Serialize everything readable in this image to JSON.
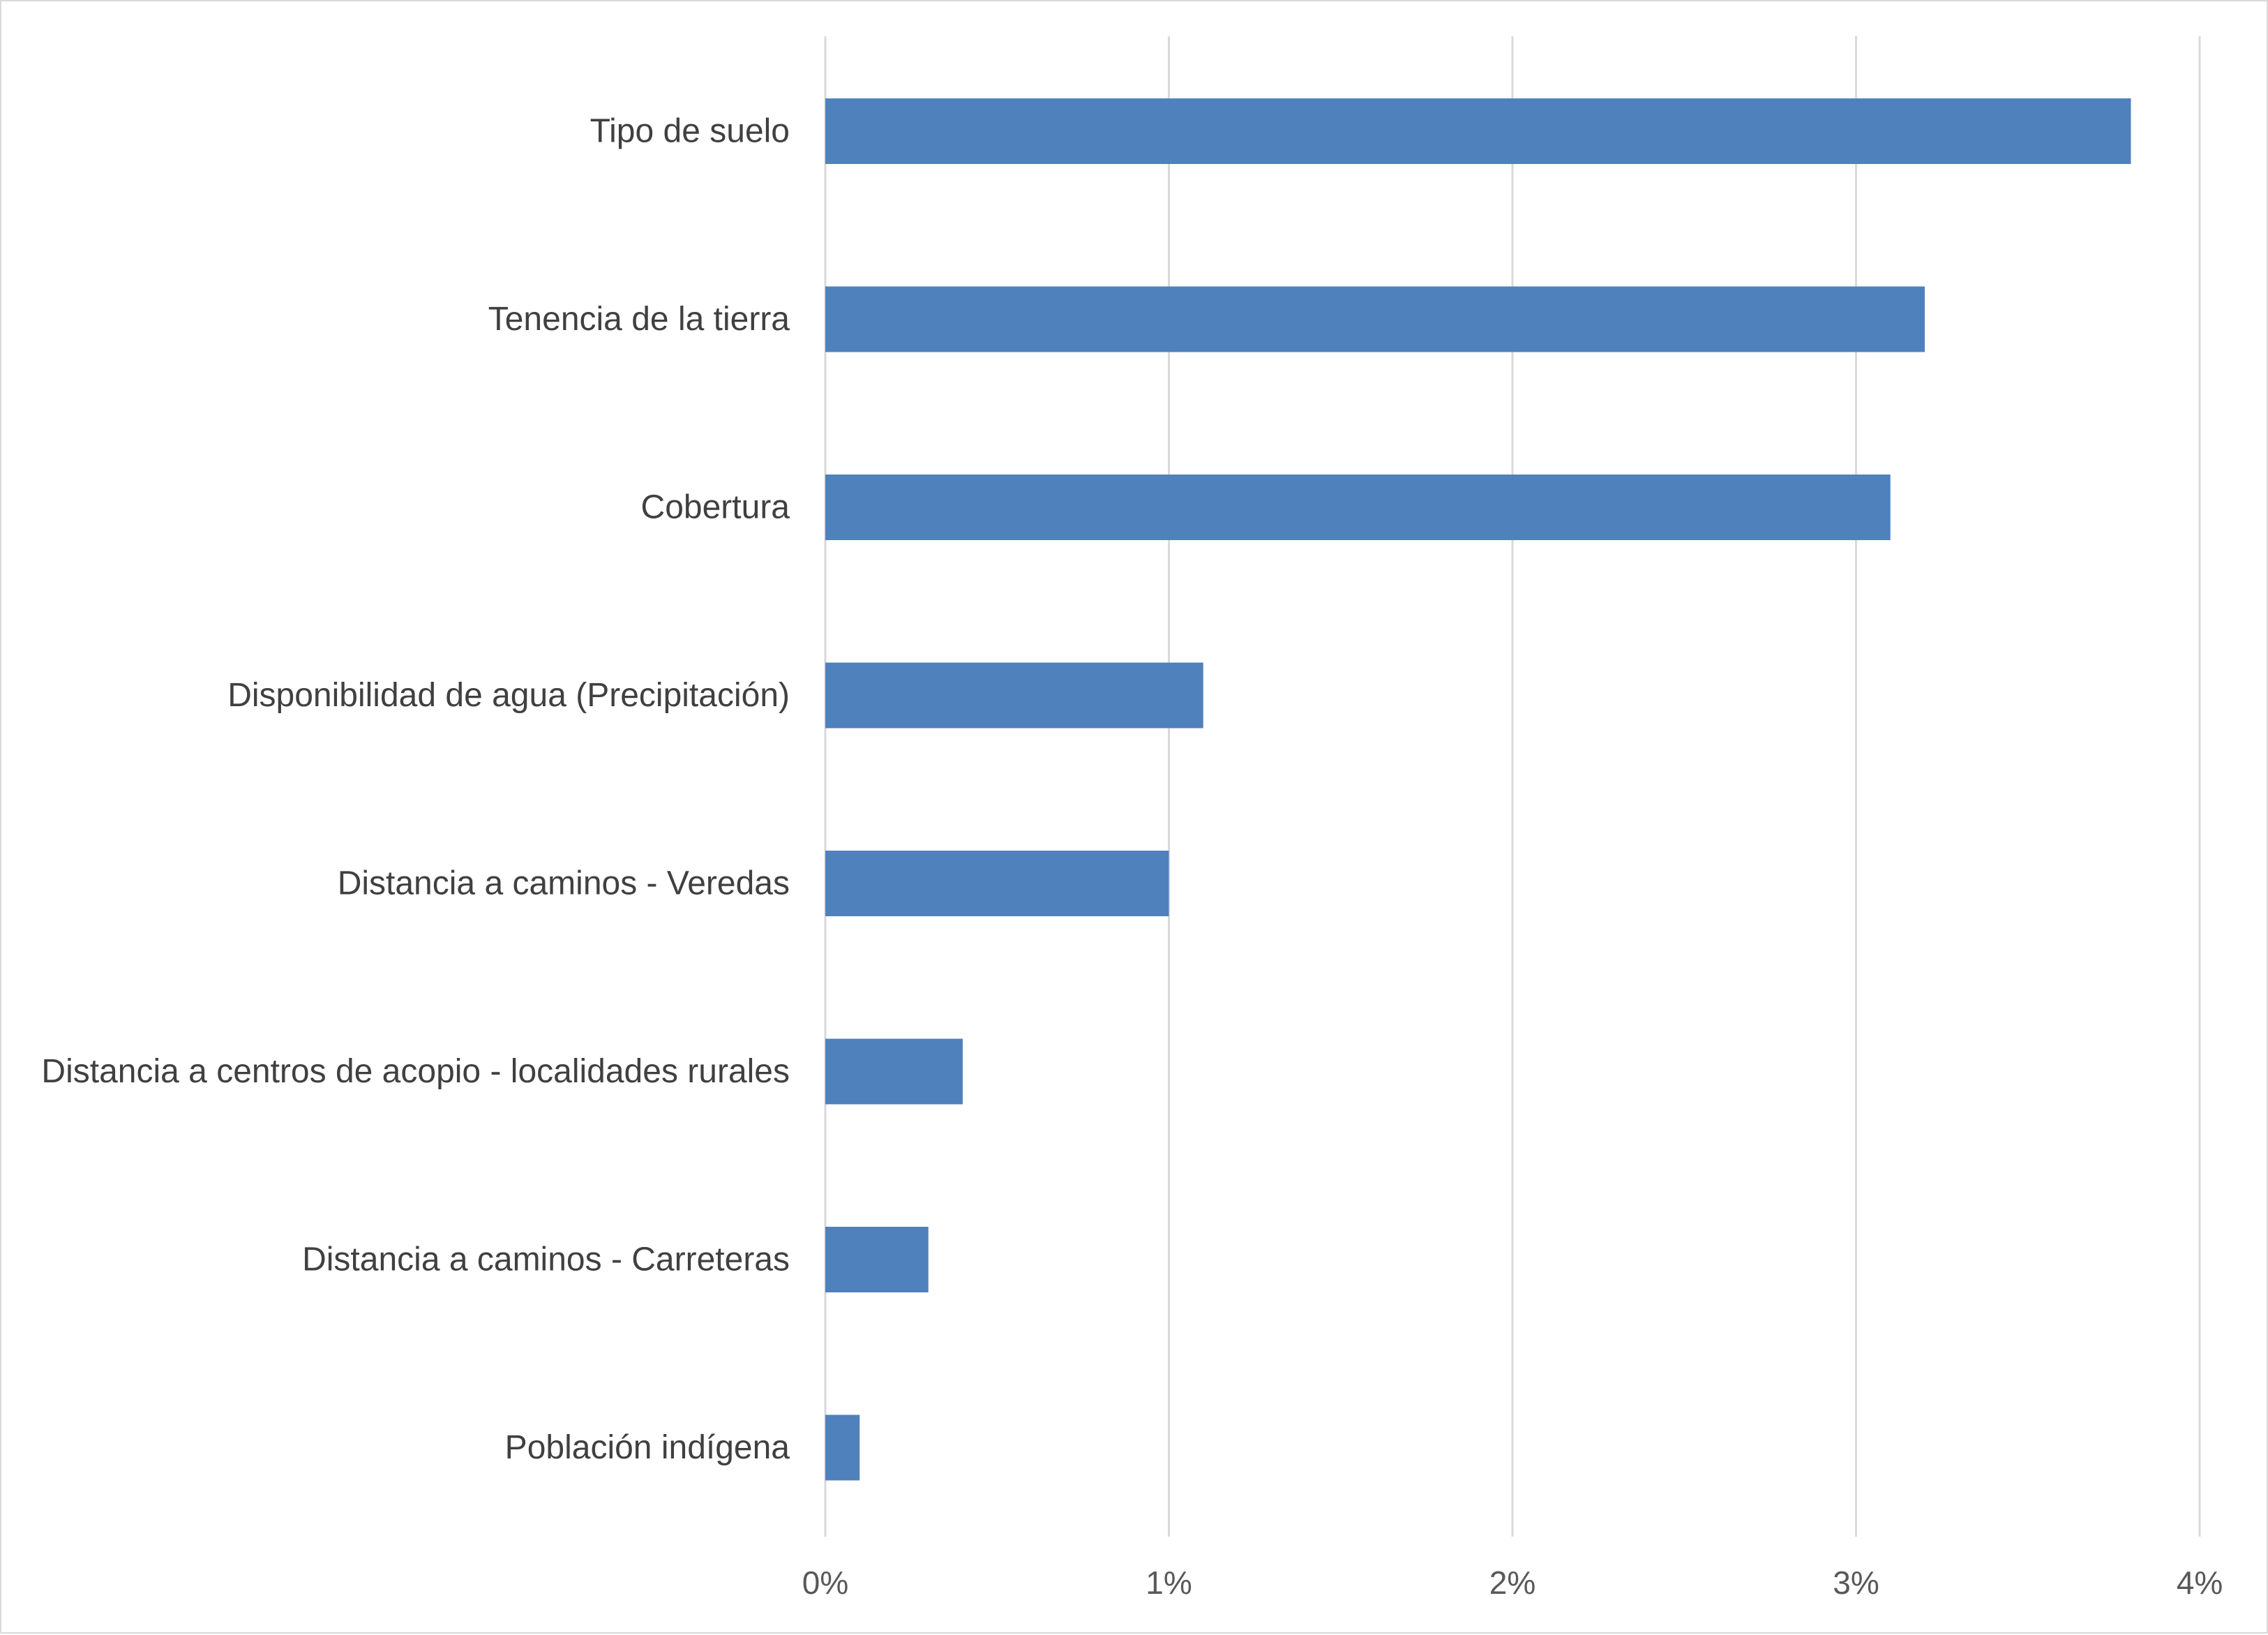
{
  "chart_data": {
    "type": "bar",
    "orientation": "horizontal",
    "categories": [
      "Tipo de suelo",
      "Tenencia de la tierra",
      "Cobertura",
      "Disponibilidad de agua (Precipitación)",
      "Distancia a caminos - Veredas",
      "Distancia a centros de acopio - localidades rurales",
      "Distancia a caminos - Carreteras",
      "Población indígena"
    ],
    "values": [
      3.8,
      3.2,
      3.1,
      1.1,
      1.0,
      0.4,
      0.3,
      0.1
    ],
    "x_ticks": [
      "0%",
      "1%",
      "2%",
      "3%",
      "4%"
    ],
    "xlim": [
      0,
      4
    ],
    "unit": "%",
    "title": "",
    "xlabel": "",
    "ylabel": "",
    "grid": "vertical",
    "legend": "none",
    "bar_color": "#4f81bd",
    "grid_color": "#d9d9d9"
  }
}
